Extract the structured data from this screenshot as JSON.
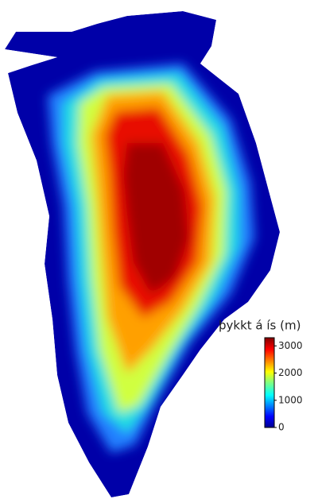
{
  "colorbar": {
    "title": "þykkt á ís (m)",
    "range": [
      0,
      3300
    ],
    "ticks": [
      0,
      1000,
      2000,
      3000
    ]
  }
}
